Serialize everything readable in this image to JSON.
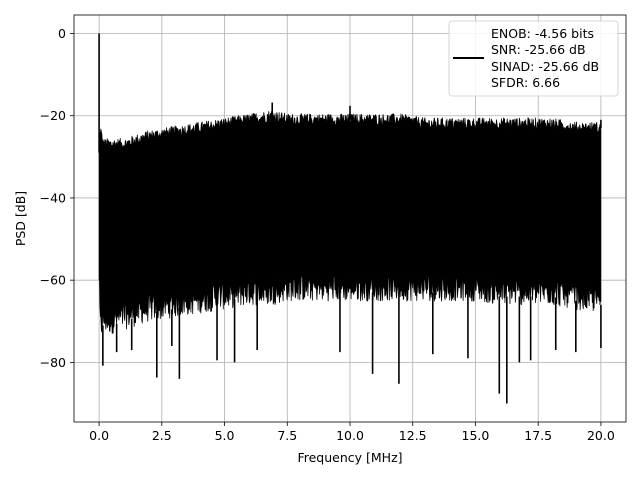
{
  "chart_data": {
    "type": "line",
    "title": "",
    "xlabel": "Frequency [MHz]",
    "ylabel": "PSD [dB]",
    "xlim": [
      -1.0,
      21.0
    ],
    "ylim": [
      -94.5,
      4.5
    ],
    "xticks": [
      0.0,
      2.5,
      5.0,
      7.5,
      10.0,
      12.5,
      15.0,
      17.5,
      20.0
    ],
    "xtick_labels": [
      "0.0",
      "2.5",
      "5.0",
      "7.5",
      "10.0",
      "12.5",
      "15.0",
      "17.5",
      "20.0"
    ],
    "yticks": [
      0,
      -20,
      -40,
      -60,
      -80
    ],
    "ytick_labels": [
      "0",
      "−20",
      "−40",
      "−60",
      "−80"
    ],
    "grid": true,
    "legend_position": "top-right",
    "series": [
      {
        "color": "#000000",
        "envelope": {
          "x": [
            0.0,
            0.05,
            0.15,
            0.5,
            1.0,
            2.0,
            3.0,
            4.0,
            5.0,
            6.0,
            6.9,
            7.5,
            8.0,
            9.0,
            10.0,
            11.0,
            12.0,
            13.0,
            14.0,
            15.0,
            16.0,
            17.0,
            18.0,
            19.0,
            20.0
          ],
          "upper": [
            -29,
            -23,
            -27,
            -27,
            -27,
            -25,
            -24,
            -23,
            -22,
            -21,
            -20,
            -21,
            -21,
            -21,
            -21,
            -21,
            -21,
            -22,
            -22,
            -22,
            -22,
            -22,
            -22,
            -23,
            -23
          ],
          "lower": [
            -60,
            -73,
            -71,
            -71,
            -70,
            -68,
            -67,
            -66,
            -65,
            -64,
            -64,
            -63,
            -63,
            -63,
            -63,
            -63,
            -63,
            -63,
            -63,
            -63,
            -64,
            -64,
            -64,
            -65,
            -66
          ]
        },
        "peaks": [
          {
            "x": 0.0,
            "y": 0.0
          },
          {
            "x": 6.9,
            "y": -16.8
          },
          {
            "x": 10.0,
            "y": -17.6
          },
          {
            "x": 20.0,
            "y": -21.0
          }
        ],
        "dips": [
          {
            "x": 0.15,
            "y": -80.8
          },
          {
            "x": 0.7,
            "y": -77.5
          },
          {
            "x": 1.3,
            "y": -77.0
          },
          {
            "x": 2.3,
            "y": -83.7
          },
          {
            "x": 2.9,
            "y": -76.0
          },
          {
            "x": 3.2,
            "y": -84.0
          },
          {
            "x": 4.7,
            "y": -79.5
          },
          {
            "x": 5.4,
            "y": -80.0
          },
          {
            "x": 6.3,
            "y": -77.0
          },
          {
            "x": 9.6,
            "y": -77.5
          },
          {
            "x": 10.9,
            "y": -82.8
          },
          {
            "x": 11.95,
            "y": -85.2
          },
          {
            "x": 13.3,
            "y": -78.0
          },
          {
            "x": 14.7,
            "y": -79.0
          },
          {
            "x": 15.95,
            "y": -87.6
          },
          {
            "x": 16.25,
            "y": -90.0
          },
          {
            "x": 16.75,
            "y": -80.0
          },
          {
            "x": 17.2,
            "y": -79.5
          },
          {
            "x": 18.2,
            "y": -77.0
          },
          {
            "x": 19.0,
            "y": -77.5
          },
          {
            "x": 20.0,
            "y": -76.5
          }
        ]
      }
    ],
    "legend": {
      "lines": [
        "ENOB: -4.56 bits",
        "SNR: -25.66 dB",
        "SINAD: -25.66 dB",
        "SFDR: 6.66"
      ]
    }
  }
}
